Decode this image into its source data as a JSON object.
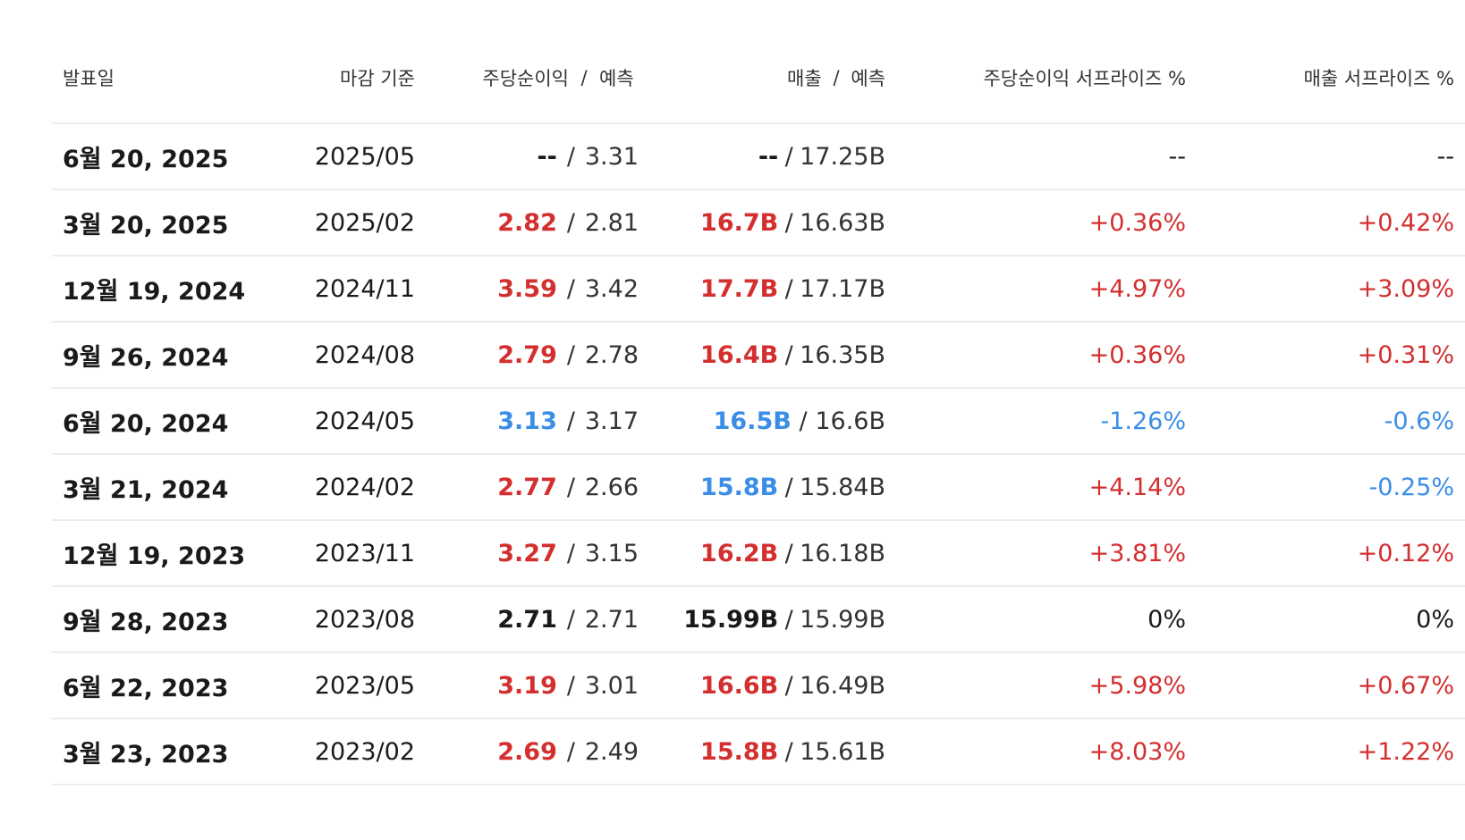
{
  "colors": {
    "positive": "#d32f2f",
    "negative": "#3b8ee6",
    "neutral": "#1a1a1a",
    "divider": "#ececec"
  },
  "headers": {
    "date": "발표일",
    "period": "마감 기준",
    "eps": "주당순이익",
    "eps_sep": "/",
    "eps_forecast": "예측",
    "revenue": "매출",
    "revenue_sep": "/",
    "revenue_forecast": "예측",
    "eps_surprise": "주당순이익 서프라이즈 %",
    "revenue_surprise": "매출 서프라이즈 %"
  },
  "separator": "/",
  "rows": [
    {
      "date": "6월 20, 2025",
      "period": "2025/05",
      "eps_actual": "--",
      "eps_forecast": "3.31",
      "eps_tone": "neu",
      "revenue_actual": "--",
      "revenue_forecast": "17.25B",
      "revenue_tone": "neu",
      "eps_surprise": "--",
      "eps_surprise_tone": "neu",
      "revenue_surprise": "--",
      "revenue_surprise_tone": "neu"
    },
    {
      "date": "3월 20, 2025",
      "period": "2025/02",
      "eps_actual": "2.82",
      "eps_forecast": "2.81",
      "eps_tone": "pos",
      "revenue_actual": "16.7B",
      "revenue_forecast": "16.63B",
      "revenue_tone": "pos",
      "eps_surprise": "+0.36%",
      "eps_surprise_tone": "pos",
      "revenue_surprise": "+0.42%",
      "revenue_surprise_tone": "pos"
    },
    {
      "date": "12월 19, 2024",
      "period": "2024/11",
      "eps_actual": "3.59",
      "eps_forecast": "3.42",
      "eps_tone": "pos",
      "revenue_actual": "17.7B",
      "revenue_forecast": "17.17B",
      "revenue_tone": "pos",
      "eps_surprise": "+4.97%",
      "eps_surprise_tone": "pos",
      "revenue_surprise": "+3.09%",
      "revenue_surprise_tone": "pos"
    },
    {
      "date": "9월 26, 2024",
      "period": "2024/08",
      "eps_actual": "2.79",
      "eps_forecast": "2.78",
      "eps_tone": "pos",
      "revenue_actual": "16.4B",
      "revenue_forecast": "16.35B",
      "revenue_tone": "pos",
      "eps_surprise": "+0.36%",
      "eps_surprise_tone": "pos",
      "revenue_surprise": "+0.31%",
      "revenue_surprise_tone": "pos"
    },
    {
      "date": "6월 20, 2024",
      "period": "2024/05",
      "eps_actual": "3.13",
      "eps_forecast": "3.17",
      "eps_tone": "neg",
      "revenue_actual": "16.5B",
      "revenue_forecast": "16.6B",
      "revenue_tone": "neg",
      "eps_surprise": "-1.26%",
      "eps_surprise_tone": "neg",
      "revenue_surprise": "-0.6%",
      "revenue_surprise_tone": "neg"
    },
    {
      "date": "3월 21, 2024",
      "period": "2024/02",
      "eps_actual": "2.77",
      "eps_forecast": "2.66",
      "eps_tone": "pos",
      "revenue_actual": "15.8B",
      "revenue_forecast": "15.84B",
      "revenue_tone": "neg",
      "eps_surprise": "+4.14%",
      "eps_surprise_tone": "pos",
      "revenue_surprise": "-0.25%",
      "revenue_surprise_tone": "neg"
    },
    {
      "date": "12월 19, 2023",
      "period": "2023/11",
      "eps_actual": "3.27",
      "eps_forecast": "3.15",
      "eps_tone": "pos",
      "revenue_actual": "16.2B",
      "revenue_forecast": "16.18B",
      "revenue_tone": "pos",
      "eps_surprise": "+3.81%",
      "eps_surprise_tone": "pos",
      "revenue_surprise": "+0.12%",
      "revenue_surprise_tone": "pos"
    },
    {
      "date": "9월 28, 2023",
      "period": "2023/08",
      "eps_actual": "2.71",
      "eps_forecast": "2.71",
      "eps_tone": "neu",
      "revenue_actual": "15.99B",
      "revenue_forecast": "15.99B",
      "revenue_tone": "neu",
      "eps_surprise": "0%",
      "eps_surprise_tone": "neu",
      "revenue_surprise": "0%",
      "revenue_surprise_tone": "neu"
    },
    {
      "date": "6월 22, 2023",
      "period": "2023/05",
      "eps_actual": "3.19",
      "eps_forecast": "3.01",
      "eps_tone": "pos",
      "revenue_actual": "16.6B",
      "revenue_forecast": "16.49B",
      "revenue_tone": "pos",
      "eps_surprise": "+5.98%",
      "eps_surprise_tone": "pos",
      "revenue_surprise": "+0.67%",
      "revenue_surprise_tone": "pos"
    },
    {
      "date": "3월 23, 2023",
      "period": "2023/02",
      "eps_actual": "2.69",
      "eps_forecast": "2.49",
      "eps_tone": "pos",
      "revenue_actual": "15.8B",
      "revenue_forecast": "15.61B",
      "revenue_tone": "pos",
      "eps_surprise": "+8.03%",
      "eps_surprise_tone": "pos",
      "revenue_surprise": "+1.22%",
      "revenue_surprise_tone": "pos"
    }
  ]
}
